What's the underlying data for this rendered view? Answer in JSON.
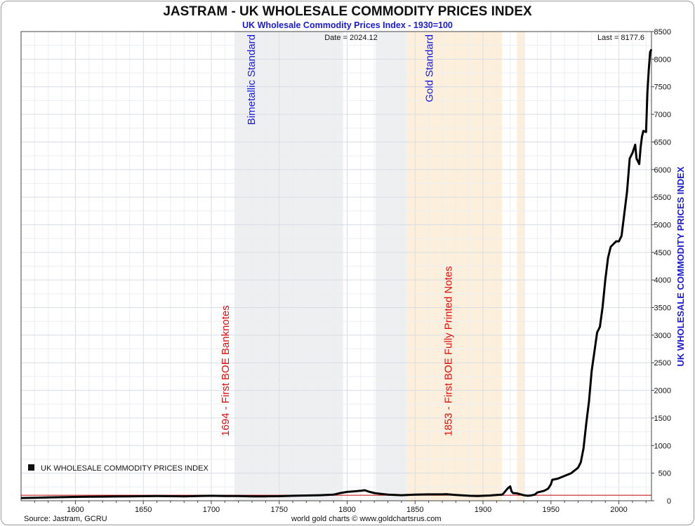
{
  "title": "JASTRAM - UK WHOLESALE COMMODITY PRICES INDEX",
  "subtitle": "UK Wholesale Commodity Prices Index - 1930=100",
  "date_label": "Date = 2024.12",
  "last_label": "Last = 8177.6",
  "source": "Source: Jastram, GCRU",
  "credit": "world gold charts © www.goldchartsrus.com",
  "colors": {
    "line": "#000000",
    "reference_line": "#c00000",
    "bimetallic_band": "#eeeff1",
    "gold_band": "#fcf0dc",
    "label_blue": "#1a1adc",
    "label_red": "#e01010"
  },
  "chart_data": {
    "type": "line",
    "title": "JASTRAM - UK WHOLESALE COMMODITY PRICES INDEX",
    "subtitle": "UK Wholesale Commodity Prices Index - 1930=100",
    "ylabel": "UK WHOLESALE COMMODITY PRICES INDEX",
    "xlabel": "",
    "xlim": [
      1560,
      2024
    ],
    "ylim": [
      0,
      8500
    ],
    "x_ticks": [
      1600,
      1650,
      1700,
      1750,
      1800,
      1850,
      1900,
      1950,
      2000
    ],
    "y_ticks": [
      0,
      500,
      1000,
      1500,
      2000,
      2500,
      3000,
      3500,
      4000,
      4500,
      5000,
      5500,
      6000,
      6500,
      7000,
      7500,
      8000,
      8500
    ],
    "grid": true,
    "legend": {
      "label": "UK WHOLESALE COMMODITY PRICES INDEX",
      "position": "bottom-left"
    },
    "reference_line": 100,
    "bands": [
      {
        "name": "bimetallic-standard",
        "start": 1717,
        "end": 1797,
        "tone": "gray"
      },
      {
        "name": "gap-gray",
        "start": 1821,
        "end": 1844,
        "tone": "gray"
      },
      {
        "name": "gold-standard",
        "start": 1844,
        "end": 1914,
        "tone": "gold"
      },
      {
        "name": "gold-return",
        "start": 1925,
        "end": 1931,
        "tone": "gold"
      }
    ],
    "annotations": [
      {
        "text": "Bimetallic Standard",
        "x": 1717,
        "y": 8500,
        "anchor": "top",
        "color": "blue"
      },
      {
        "text": "Gold Standard",
        "x": 1848,
        "y": 8500,
        "anchor": "top",
        "color": "blue"
      },
      {
        "text": "1694 - First BOE Banknotes",
        "x": 1698,
        "y": 3700,
        "anchor": "bottom",
        "color": "red"
      },
      {
        "text": "1853 - First BOE Fully Printed Notes",
        "x": 1862,
        "y": 4300,
        "anchor": "bottom",
        "color": "red"
      }
    ],
    "series": [
      {
        "name": "UK WHOLESALE COMMODITY PRICES INDEX",
        "x": [
          1560,
          1570,
          1580,
          1590,
          1600,
          1610,
          1620,
          1630,
          1640,
          1650,
          1660,
          1670,
          1680,
          1690,
          1700,
          1710,
          1720,
          1730,
          1740,
          1750,
          1760,
          1770,
          1780,
          1790,
          1795,
          1800,
          1805,
          1810,
          1813,
          1816,
          1820,
          1825,
          1830,
          1840,
          1850,
          1860,
          1870,
          1873,
          1880,
          1890,
          1896,
          1900,
          1905,
          1910,
          1914,
          1915,
          1918,
          1920,
          1921,
          1922,
          1925,
          1930,
          1933,
          1935,
          1938,
          1940,
          1945,
          1948,
          1950,
          1951,
          1955,
          1960,
          1965,
          1970,
          1972,
          1974,
          1976,
          1978,
          1980,
          1982,
          1984,
          1986,
          1988,
          1990,
          1992,
          1994,
          1996,
          1998,
          2000,
          2002,
          2004,
          2006,
          2008,
          2010,
          2012,
          2013,
          2015,
          2016,
          2017,
          2018,
          2020,
          2021,
          2022,
          2023,
          2024
        ],
        "y": [
          50,
          55,
          60,
          65,
          70,
          72,
          75,
          78,
          80,
          82,
          85,
          82,
          80,
          85,
          90,
          85,
          85,
          80,
          80,
          82,
          90,
          95,
          100,
          110,
          140,
          160,
          170,
          180,
          190,
          165,
          140,
          125,
          110,
          100,
          110,
          115,
          115,
          120,
          105,
          90,
          85,
          90,
          95,
          105,
          110,
          130,
          220,
          260,
          170,
          140,
          135,
          100,
          90,
          95,
          110,
          150,
          180,
          220,
          300,
          380,
          400,
          450,
          500,
          600,
          700,
          950,
          1400,
          1800,
          2350,
          2700,
          3050,
          3150,
          3500,
          4000,
          4400,
          4600,
          4650,
          4700,
          4700,
          4800,
          5200,
          5600,
          6200,
          6300,
          6450,
          6200,
          6100,
          6400,
          6600,
          6700,
          6680,
          7400,
          7800,
          8130,
          8177.6
        ]
      }
    ]
  }
}
